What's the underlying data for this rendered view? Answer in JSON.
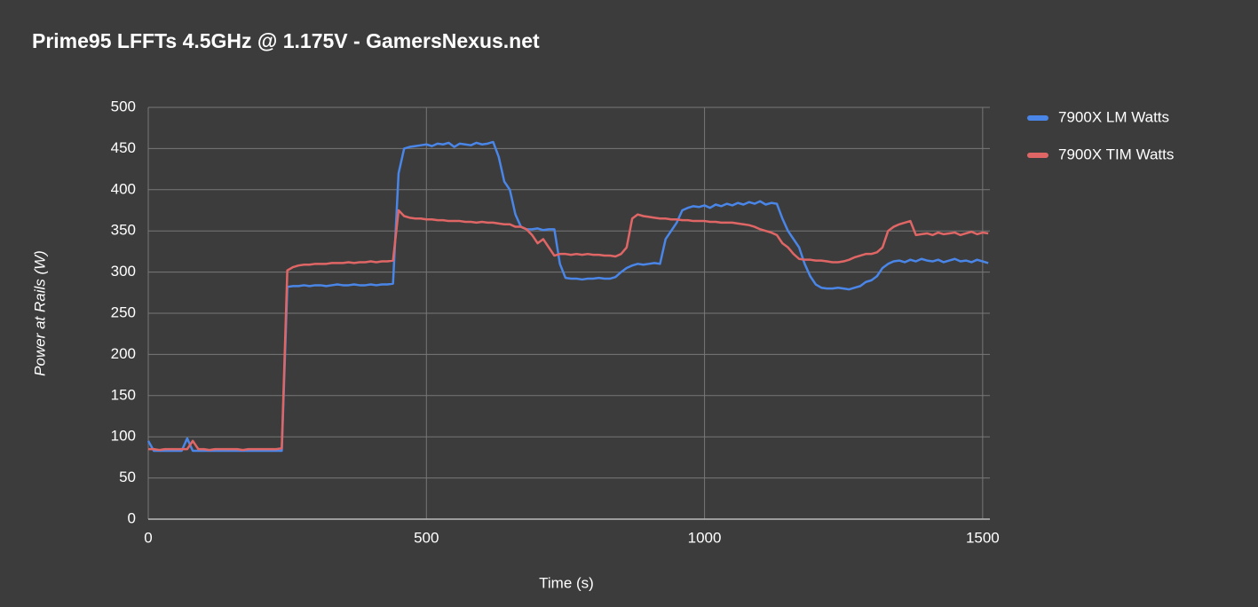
{
  "chart_data": {
    "type": "line",
    "title": "Prime95 LFFTs 4.5GHz @ 1.175V - GamersNexus.net",
    "x_label": "Time (s)",
    "y_label": "Power at Rails (W)",
    "x": [
      0,
      10,
      20,
      30,
      40,
      50,
      60,
      70,
      80,
      90,
      100,
      110,
      120,
      130,
      140,
      150,
      160,
      170,
      180,
      190,
      200,
      210,
      220,
      230,
      240,
      250,
      260,
      270,
      280,
      290,
      300,
      310,
      320,
      330,
      340,
      350,
      360,
      370,
      380,
      390,
      400,
      410,
      420,
      430,
      440,
      450,
      460,
      470,
      480,
      490,
      500,
      510,
      520,
      530,
      540,
      550,
      560,
      570,
      580,
      590,
      600,
      610,
      620,
      630,
      640,
      650,
      660,
      670,
      680,
      690,
      700,
      710,
      720,
      730,
      740,
      750,
      760,
      770,
      780,
      790,
      800,
      810,
      820,
      830,
      840,
      850,
      860,
      870,
      880,
      890,
      900,
      910,
      920,
      930,
      940,
      950,
      960,
      970,
      980,
      990,
      1000,
      1010,
      1020,
      1030,
      1040,
      1050,
      1060,
      1070,
      1080,
      1090,
      1100,
      1110,
      1120,
      1130,
      1140,
      1150,
      1160,
      1170,
      1180,
      1190,
      1200,
      1210,
      1220,
      1230,
      1240,
      1250,
      1260,
      1270,
      1280,
      1290,
      1300,
      1310,
      1320,
      1330,
      1340,
      1350,
      1360,
      1370,
      1380,
      1390,
      1400,
      1410,
      1420,
      1430,
      1440,
      1450,
      1460,
      1470,
      1480,
      1490,
      1500,
      1510
    ],
    "series": [
      {
        "name": "7900X LM Watts",
        "color": "#4a86e8",
        "values": [
          95,
          83,
          83,
          83,
          83,
          83,
          83,
          98,
          83,
          83,
          83,
          83,
          83,
          83,
          83,
          83,
          83,
          83,
          83,
          83,
          83,
          83,
          83,
          83,
          83,
          282,
          283,
          283,
          284,
          283,
          284,
          284,
          283,
          284,
          285,
          284,
          284,
          285,
          284,
          284,
          285,
          284,
          285,
          285,
          286,
          420,
          450,
          452,
          453,
          454,
          455,
          453,
          456,
          455,
          457,
          452,
          456,
          455,
          454,
          457,
          455,
          456,
          458,
          440,
          410,
          400,
          370,
          355,
          352,
          352,
          353,
          351,
          352,
          352,
          310,
          293,
          292,
          292,
          291,
          292,
          292,
          293,
          292,
          292,
          294,
          300,
          305,
          308,
          310,
          309,
          310,
          311,
          310,
          340,
          350,
          360,
          375,
          378,
          380,
          379,
          381,
          378,
          382,
          380,
          383,
          381,
          384,
          382,
          385,
          383,
          386,
          382,
          384,
          383,
          365,
          350,
          340,
          330,
          310,
          295,
          285,
          281,
          280,
          280,
          281,
          280,
          279,
          281,
          283,
          288,
          290,
          295,
          305,
          310,
          313,
          314,
          312,
          315,
          313,
          316,
          314,
          313,
          315,
          312,
          314,
          316,
          313,
          314,
          312,
          315,
          313,
          311
        ]
      },
      {
        "name": "7900X TIM Watts",
        "color": "#e06666",
        "values": [
          85,
          85,
          84,
          85,
          85,
          85,
          85,
          85,
          95,
          85,
          85,
          84,
          85,
          85,
          85,
          85,
          85,
          84,
          85,
          85,
          85,
          85,
          85,
          85,
          86,
          302,
          306,
          308,
          309,
          309,
          310,
          310,
          310,
          311,
          311,
          311,
          312,
          311,
          312,
          312,
          313,
          312,
          313,
          313,
          314,
          375,
          368,
          366,
          365,
          365,
          364,
          364,
          363,
          363,
          362,
          362,
          362,
          361,
          361,
          360,
          361,
          360,
          360,
          359,
          358,
          358,
          355,
          355,
          352,
          345,
          335,
          340,
          330,
          320,
          322,
          322,
          321,
          322,
          321,
          322,
          321,
          321,
          320,
          320,
          319,
          322,
          330,
          365,
          370,
          368,
          367,
          366,
          365,
          365,
          364,
          364,
          363,
          363,
          362,
          362,
          362,
          361,
          361,
          360,
          360,
          360,
          359,
          358,
          357,
          355,
          352,
          350,
          348,
          345,
          335,
          330,
          322,
          316,
          315,
          315,
          314,
          314,
          313,
          312,
          312,
          313,
          315,
          318,
          320,
          322,
          322,
          324,
          330,
          350,
          355,
          358,
          360,
          362,
          345,
          346,
          347,
          345,
          348,
          346,
          347,
          348,
          345,
          347,
          349,
          346,
          348,
          347
        ]
      }
    ],
    "xlim": [
      0,
      1513
    ],
    "xticks": [
      0,
      500,
      1000,
      1500
    ],
    "ylim": [
      0,
      500
    ],
    "yticks": [
      0,
      50,
      100,
      150,
      200,
      250,
      300,
      350,
      400,
      450,
      500
    ],
    "grid": true,
    "legend": "right"
  }
}
